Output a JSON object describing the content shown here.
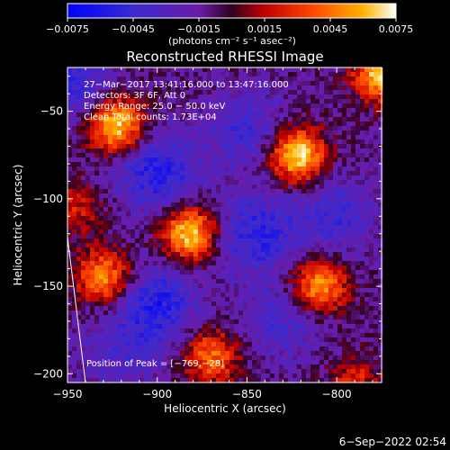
{
  "chart_data": {
    "type": "heatmap",
    "title": "Reconstructed RHESSI Image",
    "xlabel": "Heliocentric X (arcsec)",
    "ylabel": "Heliocentric Y (arcsec)",
    "xlim": [
      -950,
      -775
    ],
    "ylim": [
      -205,
      -25
    ],
    "x_ticks": [
      -950,
      -900,
      -850,
      -800
    ],
    "x_tick_labels": [
      "−950",
      "−900",
      "−850",
      "−800"
    ],
    "y_ticks": [
      -50,
      -100,
      -150,
      -200
    ],
    "y_tick_labels": [
      "−50",
      "−100",
      "−150",
      "−200"
    ],
    "colorbar": {
      "range": [
        -0.0075,
        0.0075
      ],
      "ticks": [
        -0.0075,
        -0.0045,
        -0.0015,
        0.0015,
        0.0045,
        0.0075
      ],
      "tick_labels": [
        "−0.0075",
        "−0.0045",
        "−0.0015",
        "0.0015",
        "0.0045",
        "0.0075"
      ],
      "units": "(photons cm⁻² s⁻¹ asec⁻²)"
    },
    "annotations": [
      "27−Mar−2017 13:41:16.000 to 13:47:16.000",
      "Detectors: 3F 6F, Att 0",
      "Energy Range: 25.0 − 50.0 keV",
      "Clean    Total counts: 1.73E+04"
    ],
    "peak_label": "Position of Peak = [−769,−28]",
    "peak": {
      "x": -769,
      "y": -28
    },
    "sources": [
      {
        "x": -923,
        "y": -58,
        "amp": 1.0
      },
      {
        "x": -822,
        "y": -75,
        "amp": 1.0
      },
      {
        "x": -882,
        "y": -120,
        "amp": 0.95
      },
      {
        "x": -930,
        "y": -145,
        "amp": 0.75
      },
      {
        "x": -810,
        "y": -150,
        "amp": 0.8
      },
      {
        "x": -870,
        "y": -190,
        "amp": 0.65
      },
      {
        "x": -775,
        "y": -28,
        "amp": 0.9
      },
      {
        "x": -945,
        "y": -105,
        "amp": 0.35
      },
      {
        "x": -790,
        "y": -205,
        "amp": 0.4
      }
    ],
    "sidelobes": [
      {
        "x": -945,
        "y": -35,
        "amp": -0.45
      },
      {
        "x": -900,
        "y": -85,
        "amp": -0.6
      },
      {
        "x": -845,
        "y": -120,
        "amp": -0.55
      },
      {
        "x": -900,
        "y": -160,
        "amp": -0.6
      },
      {
        "x": -850,
        "y": -60,
        "amp": -0.4
      },
      {
        "x": -800,
        "y": -110,
        "amp": -0.4
      },
      {
        "x": -830,
        "y": -170,
        "amp": -0.35
      },
      {
        "x": -920,
        "y": -190,
        "amp": -0.3
      }
    ],
    "limb_line": {
      "x1": -950,
      "y1": -122,
      "x2": -940,
      "y2": -205
    }
  },
  "footer": {
    "date": "6−Sep−2022 02:54"
  },
  "colors": {
    "background": "#000000",
    "foreground": "#ffffff"
  }
}
